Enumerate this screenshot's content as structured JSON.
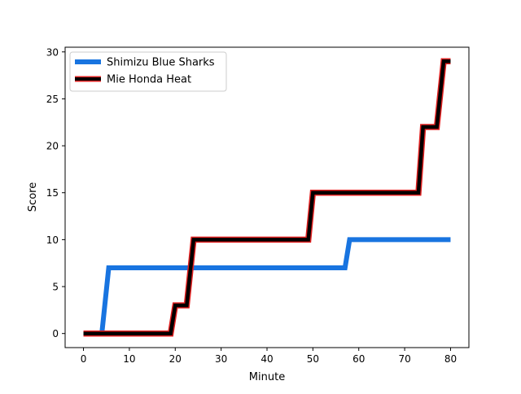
{
  "chart_data": {
    "type": "line",
    "title": "",
    "xlabel": "Minute",
    "ylabel": "Score",
    "xlim": [
      -4,
      84
    ],
    "ylim": [
      -1.5,
      30.5
    ],
    "xticks": [
      0,
      10,
      20,
      30,
      40,
      50,
      60,
      70,
      80
    ],
    "yticks": [
      0,
      5,
      10,
      15,
      20,
      25,
      30
    ],
    "grid": false,
    "legend_position": "top-left",
    "series": [
      {
        "name": "Shimizu Blue Sharks",
        "color": "#1874e0",
        "x": [
          0,
          4,
          5.5,
          57,
          58,
          80
        ],
        "y": [
          0,
          0,
          7,
          7,
          10,
          10
        ]
      },
      {
        "name": "Mie Honda Heat",
        "color": "#000000",
        "edge_color": "#e02020",
        "x": [
          0,
          19,
          20,
          22.5,
          24,
          49,
          50,
          73,
          74,
          77,
          78.5,
          80
        ],
        "y": [
          0,
          0,
          3,
          3,
          10,
          10,
          15,
          15,
          22,
          22,
          29,
          29
        ]
      }
    ]
  }
}
